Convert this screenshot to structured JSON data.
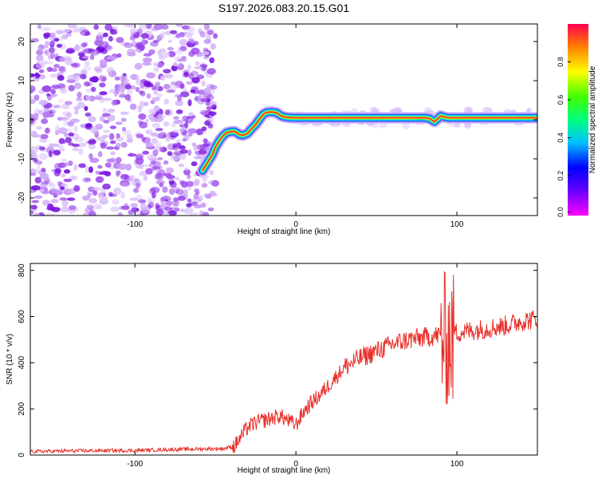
{
  "figure_title": "S197.2026.083.20.15.G01",
  "chart_data": [
    {
      "type": "heatmap",
      "title": "S197.2026.083.20.15.G01",
      "xlabel": "Height of straight line (km)",
      "ylabel": "Frequency (Hz)",
      "xlim": [
        -165,
        150
      ],
      "ylim": [
        -24.5,
        24.5
      ],
      "xticks": [
        -100,
        0,
        100
      ],
      "yticks": [
        -20,
        -10,
        0,
        10,
        20
      ],
      "colorbar": {
        "label": "Normalized spectral amplitude",
        "range": [
          0,
          1
        ],
        "ticks": [
          "0.0",
          "0.2",
          "0.4",
          "0.6",
          "0.8"
        ],
        "colormap": "rainbow (magenta-blue-cyan-green-yellow-red)"
      },
      "ridge_x": [
        -58,
        -55,
        -52,
        -50,
        -47,
        -45,
        -43,
        -40,
        -38,
        -35,
        -33,
        -30,
        -28,
        -25,
        -22,
        -20,
        -18,
        -15,
        -12,
        -10,
        -8,
        -5,
        -2,
        0,
        20,
        40,
        60,
        80,
        83,
        86,
        88,
        90,
        92,
        95,
        100,
        120,
        140,
        150
      ],
      "ridge_y": [
        -13,
        -11,
        -9,
        -7,
        -5,
        -4,
        -3.3,
        -3,
        -3,
        -3.8,
        -4,
        -3.5,
        -2.5,
        -1.2,
        0.5,
        1.5,
        1.9,
        2,
        1.8,
        1.2,
        0.8,
        0.6,
        0.5,
        0.5,
        0.5,
        0.5,
        0.5,
        0.5,
        0.3,
        -0.5,
        0.2,
        1,
        0.7,
        0.5,
        0.5,
        0.5,
        0.5,
        0.5
      ],
      "noise_region_x": [
        -165,
        -50
      ]
    },
    {
      "type": "line",
      "xlabel": "Height of straight line (km)",
      "ylabel": "SNR (10 * v/v)",
      "xlim": [
        -165,
        150
      ],
      "ylim": [
        0,
        830
      ],
      "xticks": [
        -100,
        0,
        100
      ],
      "yticks": [
        0,
        200,
        400,
        600,
        800
      ],
      "series": [
        {
          "name": "SNR",
          "color": "#e8302a",
          "x": [
            -165,
            -140,
            -100,
            -70,
            -45,
            -38,
            -33,
            -30,
            -25,
            -20,
            -15,
            -10,
            -5,
            0,
            5,
            10,
            15,
            20,
            25,
            30,
            40,
            50,
            60,
            70,
            80,
            90,
            92,
            95,
            98,
            100,
            110,
            120,
            130,
            140,
            150
          ],
          "y": [
            15,
            18,
            20,
            25,
            28,
            40,
            90,
            120,
            140,
            150,
            160,
            170,
            150,
            130,
            190,
            230,
            260,
            300,
            340,
            380,
            420,
            450,
            480,
            500,
            510,
            520,
            760,
            190,
            540,
            530,
            540,
            550,
            560,
            580,
            590
          ]
        }
      ]
    }
  ]
}
